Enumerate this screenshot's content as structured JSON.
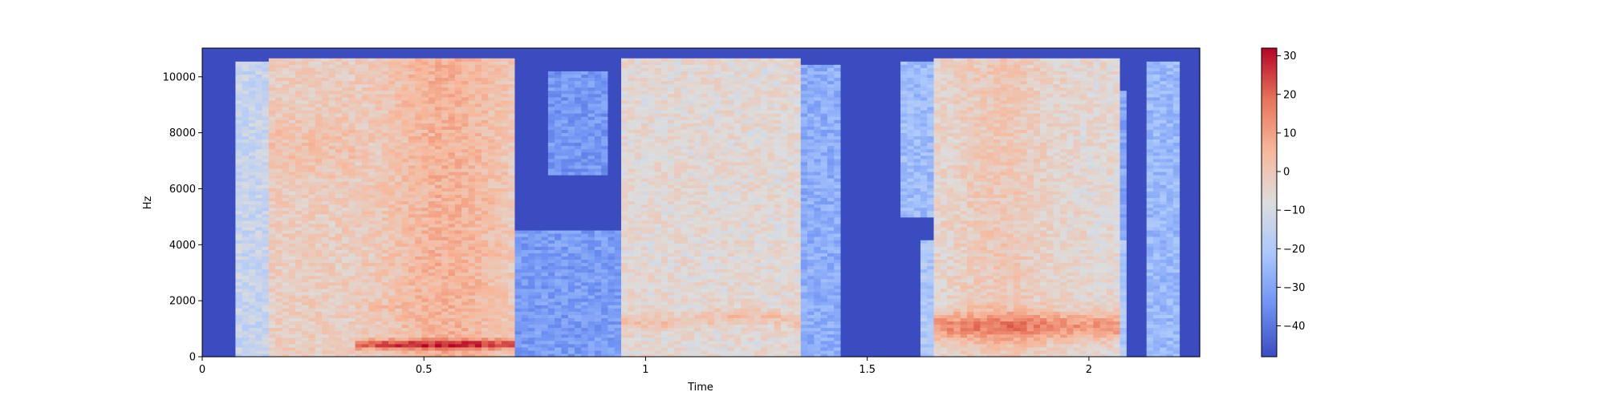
{
  "chart_data": {
    "type": "heatmap",
    "xlabel": "Time",
    "ylabel": "Hz",
    "x_ticks": [
      0,
      0.5,
      1,
      1.5,
      2
    ],
    "x_tick_labels": [
      "0",
      "0.5",
      "1",
      "1.5",
      "2"
    ],
    "y_ticks": [
      0,
      2000,
      4000,
      6000,
      8000,
      10000
    ],
    "y_tick_labels": [
      "0",
      "2000",
      "4000",
      "6000",
      "8000",
      "10000"
    ],
    "xlim": [
      0,
      2.25
    ],
    "ylim": [
      0,
      11025
    ],
    "colorbar": {
      "colormap": "coolwarm",
      "range": [
        -48,
        32
      ],
      "ticks": [
        30,
        20,
        10,
        0,
        -10,
        -20,
        -30,
        -40
      ],
      "tick_labels": [
        "30",
        "20",
        "10",
        "0",
        "−10",
        "−20",
        "−30",
        "−40"
      ]
    },
    "colormap_stops": [
      "#3b4cc0",
      "#6f92f3",
      "#aac7fd",
      "#dddddd",
      "#f7b89c",
      "#e7745b",
      "#b40426"
    ]
  }
}
